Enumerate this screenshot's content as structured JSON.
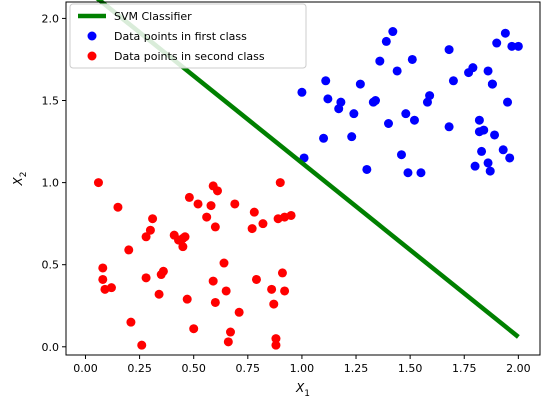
{
  "chart_data": {
    "type": "scatter",
    "title": "",
    "xlabel": "X",
    "xlabel_sub": "1",
    "ylabel": "X",
    "ylabel_sub": "2",
    "xlim": [
      -0.09,
      2.1
    ],
    "ylim": [
      -0.05,
      2.1
    ],
    "x_ticks": [
      0.0,
      0.25,
      0.5,
      0.75,
      1.0,
      1.25,
      1.5,
      1.75,
      2.0
    ],
    "x_tick_labels": [
      "0.00",
      "0.25",
      "0.50",
      "0.75",
      "1.00",
      "1.25",
      "1.50",
      "1.75",
      "2.00"
    ],
    "y_ticks": [
      0.0,
      0.5,
      1.0,
      1.5,
      2.0
    ],
    "y_tick_labels": [
      "0.0",
      "0.5",
      "1.0",
      "1.5",
      "2.0"
    ],
    "grid": false,
    "legend_position": "top-left",
    "series": [
      {
        "name": "SVM Classifier",
        "kind": "line",
        "color": "#008000",
        "x": [
          0.0,
          2.0
        ],
        "y": [
          2.18,
          0.06
        ]
      },
      {
        "name": "Data points in first class",
        "kind": "scatter",
        "color": "#0000ff",
        "x": [
          1.0,
          1.01,
          1.1,
          1.11,
          1.12,
          1.17,
          1.18,
          1.23,
          1.24,
          1.27,
          1.3,
          1.33,
          1.34,
          1.36,
          1.39,
          1.4,
          1.42,
          1.44,
          1.46,
          1.48,
          1.49,
          1.51,
          1.52,
          1.55,
          1.58,
          1.59,
          1.68,
          1.68,
          1.7,
          1.77,
          1.8,
          1.82,
          1.82,
          1.83,
          1.84,
          1.86,
          1.86,
          1.87,
          1.88,
          1.89,
          1.9,
          1.93,
          1.94,
          1.95,
          1.96,
          1.97,
          2.0,
          1.79,
          1.88
        ],
        "y": [
          1.55,
          1.15,
          1.27,
          1.62,
          1.51,
          1.45,
          1.49,
          1.28,
          1.42,
          1.6,
          1.08,
          1.49,
          1.5,
          1.74,
          1.86,
          1.36,
          1.92,
          1.68,
          1.17,
          1.42,
          1.06,
          1.75,
          1.38,
          1.06,
          1.49,
          1.53,
          1.81,
          1.34,
          1.62,
          1.67,
          1.1,
          1.38,
          1.31,
          1.19,
          1.32,
          1.68,
          1.12,
          1.07,
          1.6,
          1.29,
          1.85,
          1.2,
          1.91,
          1.49,
          1.15,
          1.83,
          1.83,
          1.7,
          1.6
        ]
      },
      {
        "name": "Data points in second class",
        "kind": "scatter",
        "color": "#ff0000",
        "x": [
          0.06,
          0.08,
          0.08,
          0.09,
          0.12,
          0.15,
          0.2,
          0.21,
          0.26,
          0.28,
          0.28,
          0.3,
          0.31,
          0.34,
          0.35,
          0.36,
          0.41,
          0.43,
          0.45,
          0.45,
          0.46,
          0.47,
          0.48,
          0.5,
          0.52,
          0.56,
          0.58,
          0.59,
          0.59,
          0.6,
          0.6,
          0.61,
          0.64,
          0.65,
          0.66,
          0.67,
          0.69,
          0.71,
          0.77,
          0.78,
          0.79,
          0.82,
          0.86,
          0.87,
          0.88,
          0.88,
          0.89,
          0.9,
          0.91,
          0.92,
          0.92,
          0.95
        ],
        "y": [
          1.0,
          0.48,
          0.41,
          0.35,
          0.36,
          0.85,
          0.59,
          0.15,
          0.01,
          0.67,
          0.42,
          0.71,
          0.78,
          0.32,
          0.44,
          0.46,
          0.68,
          0.65,
          0.61,
          0.66,
          0.67,
          0.29,
          0.91,
          0.11,
          0.87,
          0.79,
          0.86,
          0.98,
          0.4,
          0.27,
          0.73,
          0.95,
          0.51,
          0.34,
          0.03,
          0.09,
          0.87,
          0.21,
          0.72,
          0.82,
          0.41,
          0.75,
          0.35,
          0.26,
          0.05,
          0.01,
          0.78,
          1.0,
          0.45,
          0.34,
          0.79,
          0.8
        ]
      }
    ]
  }
}
